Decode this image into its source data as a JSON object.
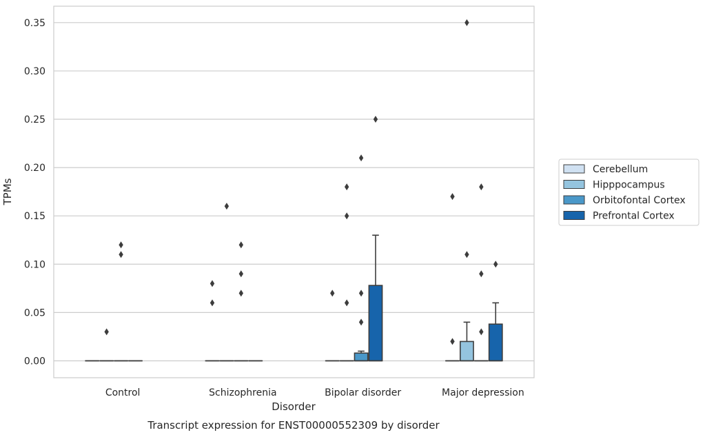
{
  "chart_data": {
    "type": "box",
    "xlabel": "Disorder",
    "ylabel": "TPMs",
    "caption": "Transcript expression for ENST00000552309 by disorder",
    "ylim": [
      -0.0175,
      0.367
    ],
    "yticks": [
      0.0,
      0.05,
      0.1,
      0.15,
      0.2,
      0.25,
      0.3,
      0.35
    ],
    "ytick_labels": [
      "0.00",
      "0.05",
      "0.10",
      "0.15",
      "0.20",
      "0.25",
      "0.30",
      "0.35"
    ],
    "grid": "horizontal",
    "legend_position": "right",
    "categories": [
      "Control",
      "Schizophrenia",
      "Bipolar disorder",
      "Major depression"
    ],
    "series": [
      {
        "name": "Cerebellum",
        "color": "#d0e1f2",
        "boxes": [
          {
            "q1": 0,
            "median": 0,
            "q3": 0,
            "whisker_low": 0,
            "whisker_high": 0,
            "outliers": []
          },
          {
            "q1": 0,
            "median": 0,
            "q3": 0,
            "whisker_low": 0,
            "whisker_high": 0,
            "outliers": [
              0.06,
              0.08
            ]
          },
          {
            "q1": 0,
            "median": 0,
            "q3": 0,
            "whisker_low": 0,
            "whisker_high": 0,
            "outliers": [
              0.07
            ]
          },
          {
            "q1": 0,
            "median": 0,
            "q3": 0,
            "whisker_low": 0,
            "whisker_high": 0,
            "outliers": [
              0.02,
              0.17
            ]
          }
        ]
      },
      {
        "name": "Hipppocampus",
        "color": "#94c4df",
        "boxes": [
          {
            "q1": 0,
            "median": 0,
            "q3": 0,
            "whisker_low": 0,
            "whisker_high": 0,
            "outliers": [
              0.03
            ]
          },
          {
            "q1": 0,
            "median": 0,
            "q3": 0,
            "whisker_low": 0,
            "whisker_high": 0,
            "outliers": [
              0.16
            ]
          },
          {
            "q1": 0,
            "median": 0,
            "q3": 0,
            "whisker_low": 0,
            "whisker_high": 0,
            "outliers": [
              0.06,
              0.15,
              0.18
            ]
          },
          {
            "q1": 0,
            "median": 0,
            "q3": 0.02,
            "whisker_low": 0,
            "whisker_high": 0.04,
            "outliers": [
              0.11,
              0.35
            ]
          }
        ]
      },
      {
        "name": "Orbitofontal Cortex",
        "color": "#4a98c9",
        "boxes": [
          {
            "q1": 0,
            "median": 0,
            "q3": 0,
            "whisker_low": 0,
            "whisker_high": 0,
            "outliers": [
              0.11,
              0.12
            ]
          },
          {
            "q1": 0,
            "median": 0,
            "q3": 0,
            "whisker_low": 0,
            "whisker_high": 0,
            "outliers": [
              0.07,
              0.09,
              0.12
            ]
          },
          {
            "q1": 0,
            "median": 0,
            "q3": 0.008,
            "whisker_low": 0,
            "whisker_high": 0.01,
            "outliers": [
              0.04,
              0.07,
              0.21
            ]
          },
          {
            "q1": 0,
            "median": 0,
            "q3": 0,
            "whisker_low": 0,
            "whisker_high": 0,
            "outliers": [
              0.03,
              0.09,
              0.18
            ]
          }
        ]
      },
      {
        "name": "Prefrontal Cortex",
        "color": "#1764ab",
        "boxes": [
          {
            "q1": 0,
            "median": 0,
            "q3": 0,
            "whisker_low": 0,
            "whisker_high": 0,
            "outliers": []
          },
          {
            "q1": 0,
            "median": 0,
            "q3": 0,
            "whisker_low": 0,
            "whisker_high": 0,
            "outliers": []
          },
          {
            "q1": 0,
            "median": 0,
            "q3": 0.078,
            "whisker_low": 0,
            "whisker_high": 0.13,
            "outliers": [
              0.25
            ]
          },
          {
            "q1": 0,
            "median": 0,
            "q3": 0.038,
            "whisker_low": 0,
            "whisker_high": 0.06,
            "outliers": [
              0.1
            ]
          }
        ]
      }
    ]
  },
  "colors": {
    "grid": "#cccccc",
    "frame": "#cccccc",
    "stroke": "#3d3d3d",
    "text": "#262626"
  }
}
